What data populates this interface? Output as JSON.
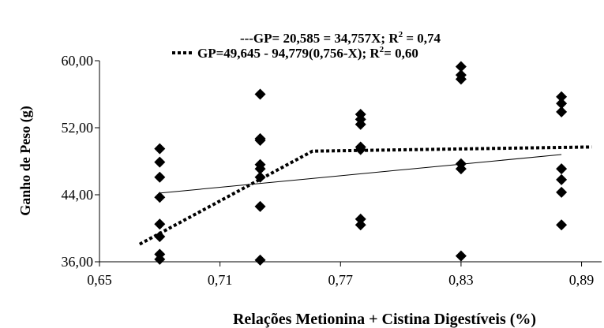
{
  "chart_data": {
    "type": "scatter",
    "legend": [
      {
        "style": "dashed",
        "prefix": "---",
        "text": "GP= 20,585 = 34,757X; R",
        "sup": "2",
        "suffix": " = 0,74"
      },
      {
        "style": "dotted",
        "prefix": "",
        "text": "GP=49,645 - 94,779(0,756-X); R",
        "sup": "2",
        "suffix": "= 0,60"
      }
    ],
    "xlabel": "Relações Metionina + Cistina Digestíveis (%)",
    "ylabel": "Ganho de Peso (g)",
    "xlim": [
      0.65,
      0.9
    ],
    "ylim": [
      36,
      60
    ],
    "xticks": [
      0.65,
      0.71,
      0.77,
      0.83,
      0.89
    ],
    "xtick_labels": [
      "0,65",
      "0,71",
      "0,77",
      "0,83",
      "0,89"
    ],
    "yticks": [
      36,
      44,
      52,
      60
    ],
    "ytick_labels": [
      "36,00",
      "44,00",
      "52,00",
      "60,00"
    ],
    "grid": false,
    "series": [
      {
        "marker": "diamond",
        "points": [
          [
            0.68,
            49.5
          ],
          [
            0.68,
            47.9
          ],
          [
            0.68,
            46.1
          ],
          [
            0.68,
            43.7
          ],
          [
            0.68,
            40.5
          ],
          [
            0.68,
            39.0
          ],
          [
            0.68,
            36.9
          ],
          [
            0.68,
            36.3
          ],
          [
            0.73,
            56.0
          ],
          [
            0.73,
            50.7
          ],
          [
            0.73,
            50.5
          ],
          [
            0.73,
            47.6
          ],
          [
            0.73,
            47.1
          ],
          [
            0.73,
            46.1
          ],
          [
            0.73,
            42.6
          ],
          [
            0.73,
            36.2
          ],
          [
            0.78,
            53.6
          ],
          [
            0.78,
            53.0
          ],
          [
            0.78,
            52.4
          ],
          [
            0.78,
            49.7
          ],
          [
            0.78,
            49.4
          ],
          [
            0.78,
            41.1
          ],
          [
            0.78,
            40.4
          ],
          [
            0.83,
            59.3
          ],
          [
            0.83,
            58.3
          ],
          [
            0.83,
            57.8
          ],
          [
            0.83,
            47.7
          ],
          [
            0.83,
            47.1
          ],
          [
            0.83,
            36.7
          ],
          [
            0.88,
            55.7
          ],
          [
            0.88,
            54.9
          ],
          [
            0.88,
            53.9
          ],
          [
            0.88,
            47.1
          ],
          [
            0.88,
            45.8
          ],
          [
            0.88,
            44.3
          ],
          [
            0.88,
            40.4
          ]
        ]
      }
    ],
    "fits": [
      {
        "name": "linear",
        "style": "solid",
        "points": [
          [
            0.68,
            44.2
          ],
          [
            0.88,
            48.8
          ]
        ]
      },
      {
        "name": "linear-plateau",
        "style": "dotted",
        "points": [
          [
            0.67,
            38.1
          ],
          [
            0.756,
            49.2
          ],
          [
            0.895,
            49.7
          ]
        ]
      }
    ]
  }
}
